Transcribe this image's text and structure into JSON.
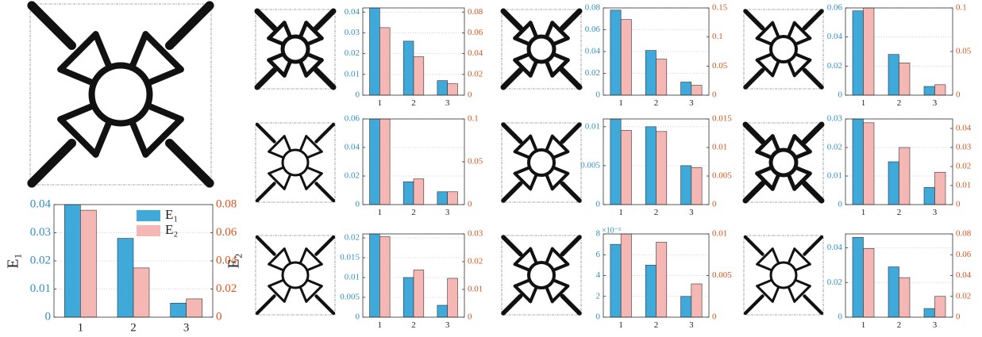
{
  "chart_data": [
    {
      "type": "bar",
      "categories": [
        "1",
        "2",
        "3"
      ],
      "ylabel": "E₁",
      "y2label": "E₂",
      "legend": "upper right",
      "grid": true,
      "series": [
        {
          "name": "E₁",
          "color": "#3fa9d9",
          "values": [
            0.04,
            0.028,
            0.005
          ]
        },
        {
          "name": "E₂",
          "color": "#f5b7b3",
          "values": [
            0.076,
            0.035,
            0.013
          ],
          "axis": "y2"
        }
      ],
      "ylim": [
        0,
        0.04
      ],
      "yticks": [
        0,
        0.01,
        0.02,
        0.03,
        0.04
      ],
      "y2lim": [
        0,
        0.08
      ],
      "y2ticks": [
        0,
        0.02,
        0.04,
        0.06,
        0.08
      ]
    },
    {
      "type": "bar",
      "categories": [
        "1",
        "2",
        "3"
      ],
      "grid": true,
      "series": [
        {
          "color": "#3fa9d9",
          "values": [
            0.042,
            0.026,
            0.007
          ]
        },
        {
          "color": "#f5b7b3",
          "values": [
            0.065,
            0.037,
            0.011
          ],
          "axis": "y2"
        }
      ],
      "ylim": [
        0,
        0.042
      ],
      "yticks": [
        0,
        0.01,
        0.02,
        0.03,
        0.04
      ],
      "y2lim": [
        0,
        0.084
      ],
      "y2ticks": [
        0,
        0.02,
        0.04,
        0.06,
        0.08
      ]
    },
    {
      "type": "bar",
      "categories": [
        "1",
        "2",
        "3"
      ],
      "grid": true,
      "series": [
        {
          "color": "#3fa9d9",
          "values": [
            0.078,
            0.041,
            0.012
          ]
        },
        {
          "color": "#f5b7b3",
          "values": [
            0.13,
            0.062,
            0.017
          ],
          "axis": "y2"
        }
      ],
      "ylim": [
        0,
        0.08
      ],
      "yticks": [
        0,
        0.02,
        0.04,
        0.06,
        0.08
      ],
      "y2lim": [
        0,
        0.15
      ],
      "y2ticks": [
        0,
        0.05,
        0.1,
        0.15
      ]
    },
    {
      "type": "bar",
      "categories": [
        "1",
        "2",
        "3"
      ],
      "grid": true,
      "series": [
        {
          "color": "#3fa9d9",
          "values": [
            0.058,
            0.028,
            0.006
          ]
        },
        {
          "color": "#f5b7b3",
          "values": [
            0.1,
            0.037,
            0.012
          ],
          "axis": "y2"
        }
      ],
      "ylim": [
        0,
        0.06
      ],
      "yticks": [
        0,
        0.02,
        0.04,
        0.06
      ],
      "y2lim": [
        0,
        0.1
      ],
      "y2ticks": [
        0,
        0.05,
        0.1
      ]
    },
    {
      "type": "bar",
      "categories": [
        "1",
        "2",
        "3"
      ],
      "grid": true,
      "series": [
        {
          "color": "#3fa9d9",
          "values": [
            0.06,
            0.016,
            0.009
          ]
        },
        {
          "color": "#f5b7b3",
          "values": [
            0.1,
            0.03,
            0.015
          ],
          "axis": "y2"
        }
      ],
      "ylim": [
        0,
        0.06
      ],
      "yticks": [
        0,
        0.02,
        0.04,
        0.06
      ],
      "y2lim": [
        0,
        0.1
      ],
      "y2ticks": [
        0,
        0.05,
        0.1
      ]
    },
    {
      "type": "bar",
      "categories": [
        "1",
        "2",
        "3"
      ],
      "grid": true,
      "series": [
        {
          "color": "#3fa9d9",
          "values": [
            0.011,
            0.01,
            0.005
          ]
        },
        {
          "color": "#f5b7b3",
          "values": [
            0.013,
            0.0128,
            0.0065
          ],
          "axis": "y2"
        }
      ],
      "ylim": [
        0,
        0.011
      ],
      "yticks": [
        0,
        0.005,
        0.01
      ],
      "y2lim": [
        0,
        0.015
      ],
      "y2ticks": [
        0,
        0.005,
        0.01,
        0.015
      ]
    },
    {
      "type": "bar",
      "categories": [
        "1",
        "2",
        "3"
      ],
      "grid": true,
      "series": [
        {
          "color": "#3fa9d9",
          "values": [
            0.03,
            0.015,
            0.006
          ]
        },
        {
          "color": "#f5b7b3",
          "values": [
            0.043,
            0.03,
            0.017
          ],
          "axis": "y2"
        }
      ],
      "ylim": [
        0,
        0.03
      ],
      "yticks": [
        0,
        0.01,
        0.02,
        0.03
      ],
      "y2lim": [
        0,
        0.045
      ],
      "y2ticks": [
        0,
        0.01,
        0.02,
        0.03,
        0.04
      ]
    },
    {
      "type": "bar",
      "categories": [
        "1",
        "2",
        "3"
      ],
      "grid": true,
      "series": [
        {
          "color": "#3fa9d9",
          "values": [
            0.021,
            0.01,
            0.003
          ]
        },
        {
          "color": "#f5b7b3",
          "values": [
            0.029,
            0.017,
            0.014
          ],
          "axis": "y2"
        }
      ],
      "ylim": [
        0,
        0.021
      ],
      "yticks": [
        0,
        0.005,
        0.01,
        0.015,
        0.02
      ],
      "y2lim": [
        0,
        0.03
      ],
      "y2ticks": [
        0,
        0.01,
        0.02,
        0.03
      ]
    },
    {
      "type": "bar",
      "categories": [
        "1",
        "2",
        "3"
      ],
      "grid": true,
      "y_multiplier": "×10⁻³",
      "series": [
        {
          "color": "#3fa9d9",
          "values": [
            0.007,
            0.005,
            0.002
          ]
        },
        {
          "color": "#f5b7b3",
          "values": [
            0.01,
            0.009,
            0.004
          ],
          "axis": "y2"
        }
      ],
      "ylim": [
        0,
        0.008
      ],
      "yticks": [
        0,
        {
          "value": 0.002,
          "label": "2"
        },
        {
          "value": 0.004,
          "label": "4"
        },
        {
          "value": 0.006,
          "label": "6"
        },
        {
          "value": 0.008,
          "label": "8"
        }
      ],
      "y2lim": [
        0,
        0.01
      ],
      "y2ticks": [
        0,
        0.005,
        0.01
      ]
    },
    {
      "type": "bar",
      "categories": [
        "1",
        "2",
        "3"
      ],
      "grid": true,
      "series": [
        {
          "color": "#3fa9d9",
          "values": [
            0.046,
            0.029,
            0.005
          ]
        },
        {
          "color": "#f5b7b3",
          "values": [
            0.066,
            0.038,
            0.02
          ],
          "axis": "y2"
        }
      ],
      "ylim": [
        0,
        0.048
      ],
      "yticks": [
        0,
        0.02,
        0.04
      ],
      "y2lim": [
        0,
        0.08
      ],
      "y2ticks": [
        0,
        0.02,
        0.04,
        0.06,
        0.08
      ]
    }
  ]
}
